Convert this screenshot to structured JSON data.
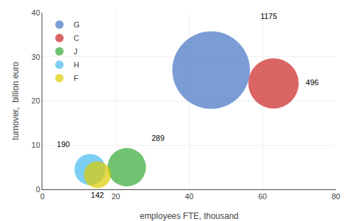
{
  "chart_data": {
    "type": "bubble",
    "xlabel": "employees FTE, thousand",
    "ylabel": "turnover,  billion euro",
    "xlim": [
      0,
      80
    ],
    "ylim": [
      0,
      40
    ],
    "xticks": [
      0,
      20,
      40,
      60,
      80
    ],
    "yticks": [
      0,
      10,
      20,
      30,
      40
    ],
    "grid": true,
    "legend": "upper left",
    "data_labels": true,
    "series": [
      {
        "name": "G",
        "color": "#4472c4",
        "x": [
          46
        ],
        "values": [
          27
        ],
        "size": [
          1175
        ]
      },
      {
        "name": "C",
        "color": "#cc2222",
        "x": [
          63
        ],
        "values": [
          24
        ],
        "size": [
          496
        ]
      },
      {
        "name": "J",
        "color": "#33aa33",
        "x": [
          23
        ],
        "values": [
          5.0
        ],
        "size": [
          289
        ]
      },
      {
        "name": "H",
        "color": "#44bbee",
        "x": [
          13
        ],
        "values": [
          4.5
        ],
        "size": [
          190
        ]
      },
      {
        "name": "F",
        "color": "#ddcc00",
        "x": [
          15
        ],
        "values": [
          3.3
        ],
        "size": [
          142
        ]
      }
    ]
  }
}
